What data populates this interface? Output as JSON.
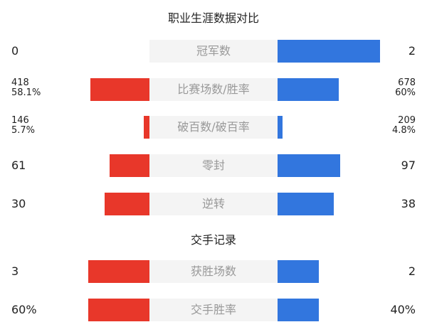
{
  "title": "职业生涯数据对比",
  "section2_title": "交手记录",
  "colors": {
    "left": "#e8372a",
    "right": "#3276de",
    "label_bg": "#f4f4f4"
  },
  "rows": [
    {
      "label": "冠军数",
      "left": [
        "0"
      ],
      "right": [
        "2"
      ],
      "left_fill": 0,
      "right_fill": 0.8
    },
    {
      "label": "比赛场数/胜率",
      "left": [
        "418",
        "58.1%"
      ],
      "right": [
        "678",
        "60%"
      ],
      "left_fill": 0.46,
      "right_fill": 0.48
    },
    {
      "label": "破百数/破百率",
      "left": [
        "146",
        "5.7%"
      ],
      "right": [
        "209",
        "4.8%"
      ],
      "left_fill": 0.044,
      "right_fill": 0.039
    },
    {
      "label": "零封",
      "left": [
        "61"
      ],
      "right": [
        "97"
      ],
      "left_fill": 0.31,
      "right_fill": 0.49
    },
    {
      "label": "逆转",
      "left": [
        "30"
      ],
      "right": [
        "38"
      ],
      "left_fill": 0.35,
      "right_fill": 0.44
    },
    {
      "label": "获胜场数",
      "left": [
        "3"
      ],
      "right": [
        "2"
      ],
      "left_fill": 0.48,
      "right_fill": 0.32
    },
    {
      "label": "交手胜率",
      "left": [
        "60%"
      ],
      "right": [
        "40%"
      ],
      "left_fill": 0.48,
      "right_fill": 0.32
    }
  ]
}
